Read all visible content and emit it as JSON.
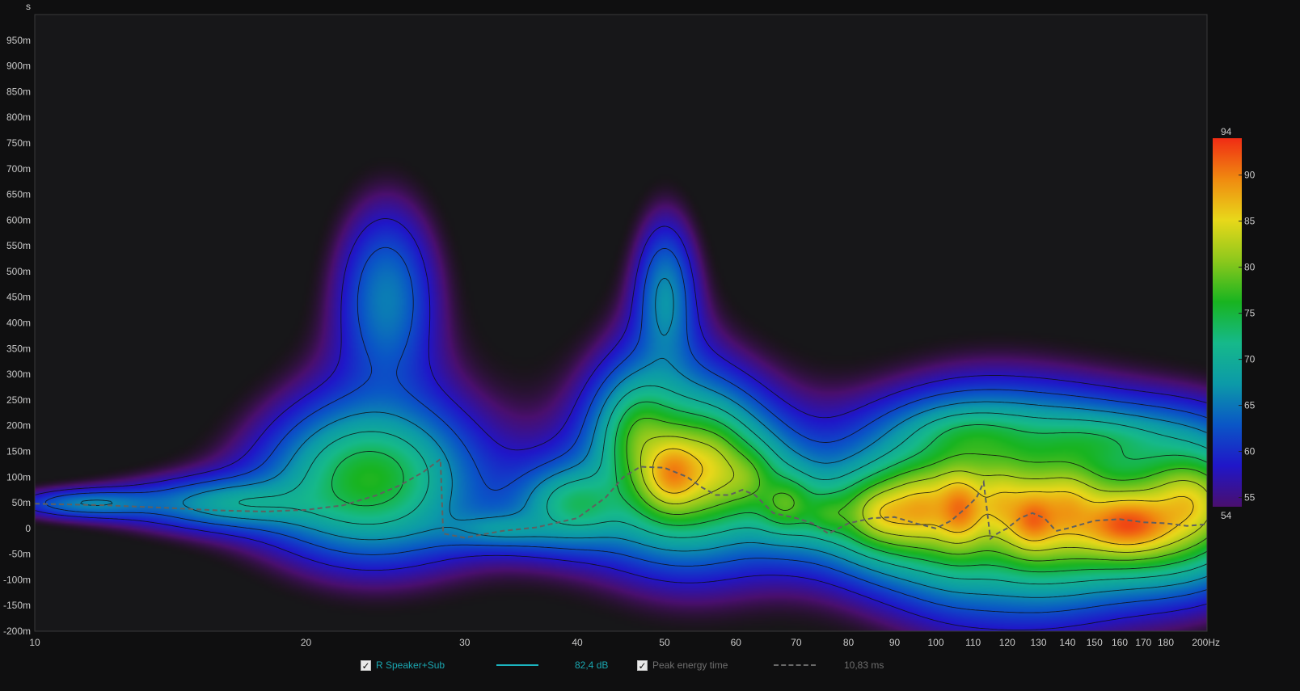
{
  "chart_data": {
    "type": "heatmap",
    "title": "",
    "xlabel": "Hz",
    "ylabel": "s",
    "x_scale": "log",
    "xlim": [
      10,
      200
    ],
    "ylim": [
      -0.2,
      1.0
    ],
    "x_ticks": [
      {
        "v": 10,
        "label": "10"
      },
      {
        "v": 20,
        "label": "20"
      },
      {
        "v": 30,
        "label": "30"
      },
      {
        "v": 40,
        "label": "40"
      },
      {
        "v": 50,
        "label": "50"
      },
      {
        "v": 60,
        "label": "60"
      },
      {
        "v": 70,
        "label": "70"
      },
      {
        "v": 80,
        "label": "80"
      },
      {
        "v": 90,
        "label": "90"
      },
      {
        "v": 100,
        "label": "100"
      },
      {
        "v": 110,
        "label": "110"
      },
      {
        "v": 120,
        "label": "120"
      },
      {
        "v": 130,
        "label": "130"
      },
      {
        "v": 140,
        "label": "140"
      },
      {
        "v": 150,
        "label": "150"
      },
      {
        "v": 160,
        "label": "160"
      },
      {
        "v": 170,
        "label": "170"
      },
      {
        "v": 180,
        "label": "180"
      },
      {
        "v": 200,
        "label": "200Hz"
      }
    ],
    "y_ticks": [
      {
        "v": 0.95,
        "label": "950m"
      },
      {
        "v": 0.9,
        "label": "900m"
      },
      {
        "v": 0.85,
        "label": "850m"
      },
      {
        "v": 0.8,
        "label": "800m"
      },
      {
        "v": 0.75,
        "label": "750m"
      },
      {
        "v": 0.7,
        "label": "700m"
      },
      {
        "v": 0.65,
        "label": "650m"
      },
      {
        "v": 0.6,
        "label": "600m"
      },
      {
        "v": 0.55,
        "label": "550m"
      },
      {
        "v": 0.5,
        "label": "500m"
      },
      {
        "v": 0.45,
        "label": "450m"
      },
      {
        "v": 0.4,
        "label": "400m"
      },
      {
        "v": 0.35,
        "label": "350m"
      },
      {
        "v": 0.3,
        "label": "300m"
      },
      {
        "v": 0.25,
        "label": "250m"
      },
      {
        "v": 0.2,
        "label": "200m"
      },
      {
        "v": 0.15,
        "label": "150m"
      },
      {
        "v": 0.1,
        "label": "100m"
      },
      {
        "v": 0.05,
        "label": "50m"
      },
      {
        "v": 0,
        "label": "0"
      },
      {
        "v": -0.05,
        "label": "-50m"
      },
      {
        "v": -0.1,
        "label": "-100m"
      },
      {
        "v": -0.15,
        "label": "-150m"
      },
      {
        "v": -0.2,
        "label": "-200m"
      }
    ],
    "colorbar": {
      "min": 54,
      "max": 94,
      "min_label": "54",
      "max_label": "94",
      "ticks": [
        {
          "v": 55,
          "label": "55"
        },
        {
          "v": 60,
          "label": "60"
        },
        {
          "v": 65,
          "label": "65"
        },
        {
          "v": 70,
          "label": "70"
        },
        {
          "v": 75,
          "label": "75"
        },
        {
          "v": 80,
          "label": "80"
        },
        {
          "v": 85,
          "label": "85"
        },
        {
          "v": 90,
          "label": "90"
        }
      ],
      "colors": [
        "#4a0f6e",
        "#2016c8",
        "#0a56c6",
        "#0c9aa8",
        "#16b98a",
        "#18b420",
        "#8cc81c",
        "#e8d81a",
        "#f08a10",
        "#f02c14"
      ]
    },
    "blobs": [
      {
        "f": 11.5,
        "t": 0.05,
        "sf": 0.09,
        "st": 0.03,
        "a": 65
      },
      {
        "f": 17,
        "t": 0.05,
        "sf": 0.11,
        "st": 0.05,
        "a": 68
      },
      {
        "f": 23.5,
        "t": 0.1,
        "sf": 0.09,
        "st": 0.12,
        "a": 76
      },
      {
        "f": 24.5,
        "t": 0.45,
        "sf": 0.06,
        "st": 0.2,
        "a": 65
      },
      {
        "f": 33,
        "t": 0.0,
        "sf": 0.08,
        "st": 0.04,
        "a": 64
      },
      {
        "f": 40,
        "t": 0.05,
        "sf": 0.06,
        "st": 0.07,
        "a": 72
      },
      {
        "f": 47,
        "t": 0.18,
        "sf": 0.04,
        "st": 0.1,
        "a": 76
      },
      {
        "f": 51,
        "t": 0.11,
        "sf": 0.035,
        "st": 0.07,
        "a": 89
      },
      {
        "f": 50,
        "t": 0.45,
        "sf": 0.035,
        "st": 0.16,
        "a": 66
      },
      {
        "f": 56,
        "t": 0.12,
        "sf": 0.04,
        "st": 0.09,
        "a": 80
      },
      {
        "f": 61,
        "t": 0.1,
        "sf": 0.04,
        "st": 0.07,
        "a": 76
      },
      {
        "f": 68,
        "t": 0.05,
        "sf": 0.035,
        "st": 0.06,
        "a": 76
      },
      {
        "f": 76,
        "t": 0.03,
        "sf": 0.035,
        "st": 0.05,
        "a": 72
      },
      {
        "f": 88,
        "t": 0.03,
        "sf": 0.045,
        "st": 0.06,
        "a": 84
      },
      {
        "f": 96,
        "t": 0.04,
        "sf": 0.04,
        "st": 0.07,
        "a": 84
      },
      {
        "f": 106,
        "t": 0.04,
        "sf": 0.03,
        "st": 0.07,
        "a": 89
      },
      {
        "f": 118,
        "t": 0.05,
        "sf": 0.035,
        "st": 0.08,
        "a": 82
      },
      {
        "f": 128,
        "t": 0.02,
        "sf": 0.03,
        "st": 0.06,
        "a": 89
      },
      {
        "f": 140,
        "t": 0.04,
        "sf": 0.04,
        "st": 0.08,
        "a": 84
      },
      {
        "f": 163,
        "t": 0.01,
        "sf": 0.055,
        "st": 0.055,
        "a": 92
      },
      {
        "f": 190,
        "t": 0.05,
        "sf": 0.05,
        "st": 0.08,
        "a": 84
      },
      {
        "f": 150,
        "t": 0.17,
        "sf": 0.1,
        "st": 0.06,
        "a": 70
      },
      {
        "f": 110,
        "t": 0.18,
        "sf": 0.08,
        "st": 0.06,
        "a": 70
      }
    ],
    "contour_levels": [
      58,
      62,
      66,
      70,
      74,
      78,
      82,
      86
    ],
    "series": [
      {
        "name": "Peak energy time",
        "style": "dashed",
        "color": "#606060",
        "x": [
          10,
          12,
          14,
          16,
          18,
          20,
          22,
          24,
          25.5,
          27,
          28.2,
          28.4,
          30,
          33,
          36,
          40,
          43,
          45,
          47,
          50,
          53,
          55,
          57,
          59,
          61,
          63,
          66,
          70,
          73,
          76,
          80,
          85,
          90,
          95,
          100,
          104,
          108,
          111,
          113,
          115,
          117,
          120,
          124,
          128,
          132,
          136,
          140,
          150,
          160,
          170,
          180,
          190,
          200
        ],
        "values": [
          0.048,
          0.045,
          0.04,
          0.035,
          0.033,
          0.036,
          0.045,
          0.065,
          0.085,
          0.11,
          0.135,
          -0.01,
          -0.018,
          -0.005,
          0.002,
          0.02,
          0.06,
          0.1,
          0.12,
          0.118,
          0.1,
          0.08,
          0.065,
          0.065,
          0.075,
          0.065,
          0.03,
          0.02,
          0.01,
          -0.01,
          0.01,
          0.02,
          0.022,
          0.01,
          0.0,
          0.015,
          0.04,
          0.06,
          0.09,
          -0.02,
          -0.01,
          0.0,
          0.02,
          0.03,
          0.02,
          -0.005,
          0.0,
          0.015,
          0.018,
          0.012,
          0.01,
          0.005,
          0.008
        ]
      }
    ]
  },
  "legend": {
    "measurement_label": "R Speaker+Sub",
    "measurement_checked": "✓",
    "measurement_value": "82,4 dB",
    "peak_label": "Peak energy time",
    "peak_checked": "✓",
    "peak_value": "10,83 ms",
    "measurement_color": "#1bb5c0",
    "peak_color": "#606060"
  }
}
